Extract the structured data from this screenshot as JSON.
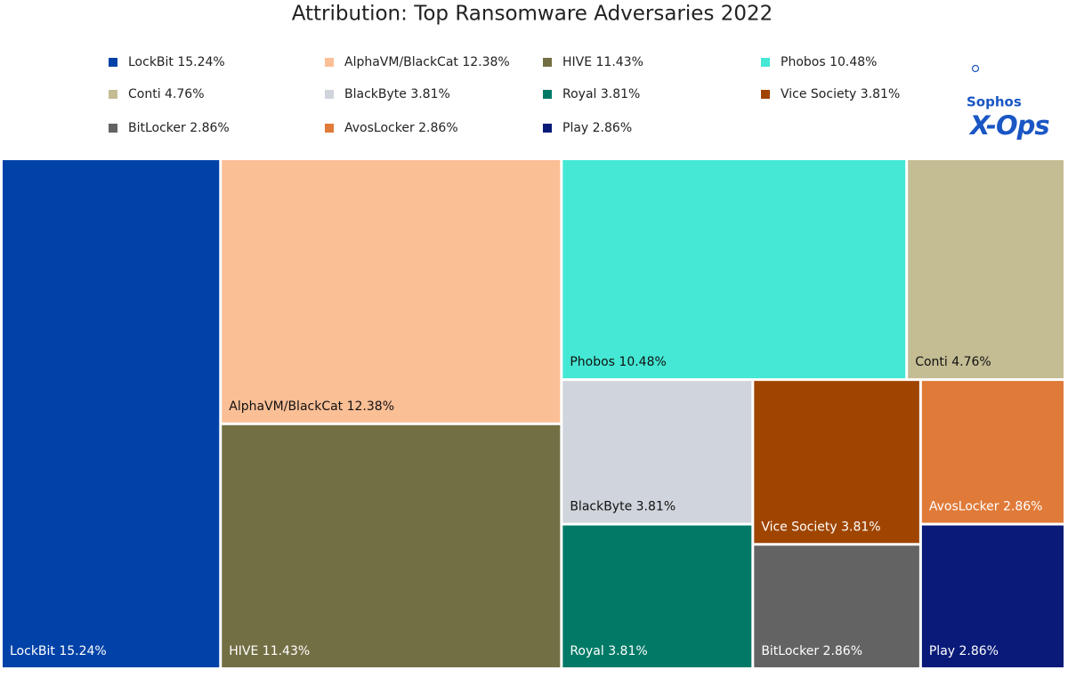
{
  "chart_data": {
    "type": "treemap",
    "title": "Attribution: Top Ransomware Adversaries 2022",
    "categories": [
      "LockBit 15.24%",
      "AlphaVM/BlackCat 12.38%",
      "HIVE 11.43%",
      "Phobos 10.48%",
      "Conti 4.76%",
      "BlackByte 3.81%",
      "Royal 3.81%",
      "Vice Society 3.81%",
      "BitLocker 2.86%",
      "AvosLocker 2.86%",
      "Play 2.86%"
    ],
    "values": [
      15.24,
      12.38,
      11.43,
      10.48,
      4.76,
      3.81,
      3.81,
      3.81,
      2.86,
      2.86,
      2.86
    ],
    "colors": [
      "#0042a8",
      "#fbbf96",
      "#736f45",
      "#44e8d4",
      "#c4bd94",
      "#d0d4dc",
      "#007a66",
      "#a04500",
      "#636363",
      "#e07a38",
      "#0a1a78"
    ]
  },
  "logo": {
    "line1": "Sophos",
    "line2": "X-Ops"
  }
}
